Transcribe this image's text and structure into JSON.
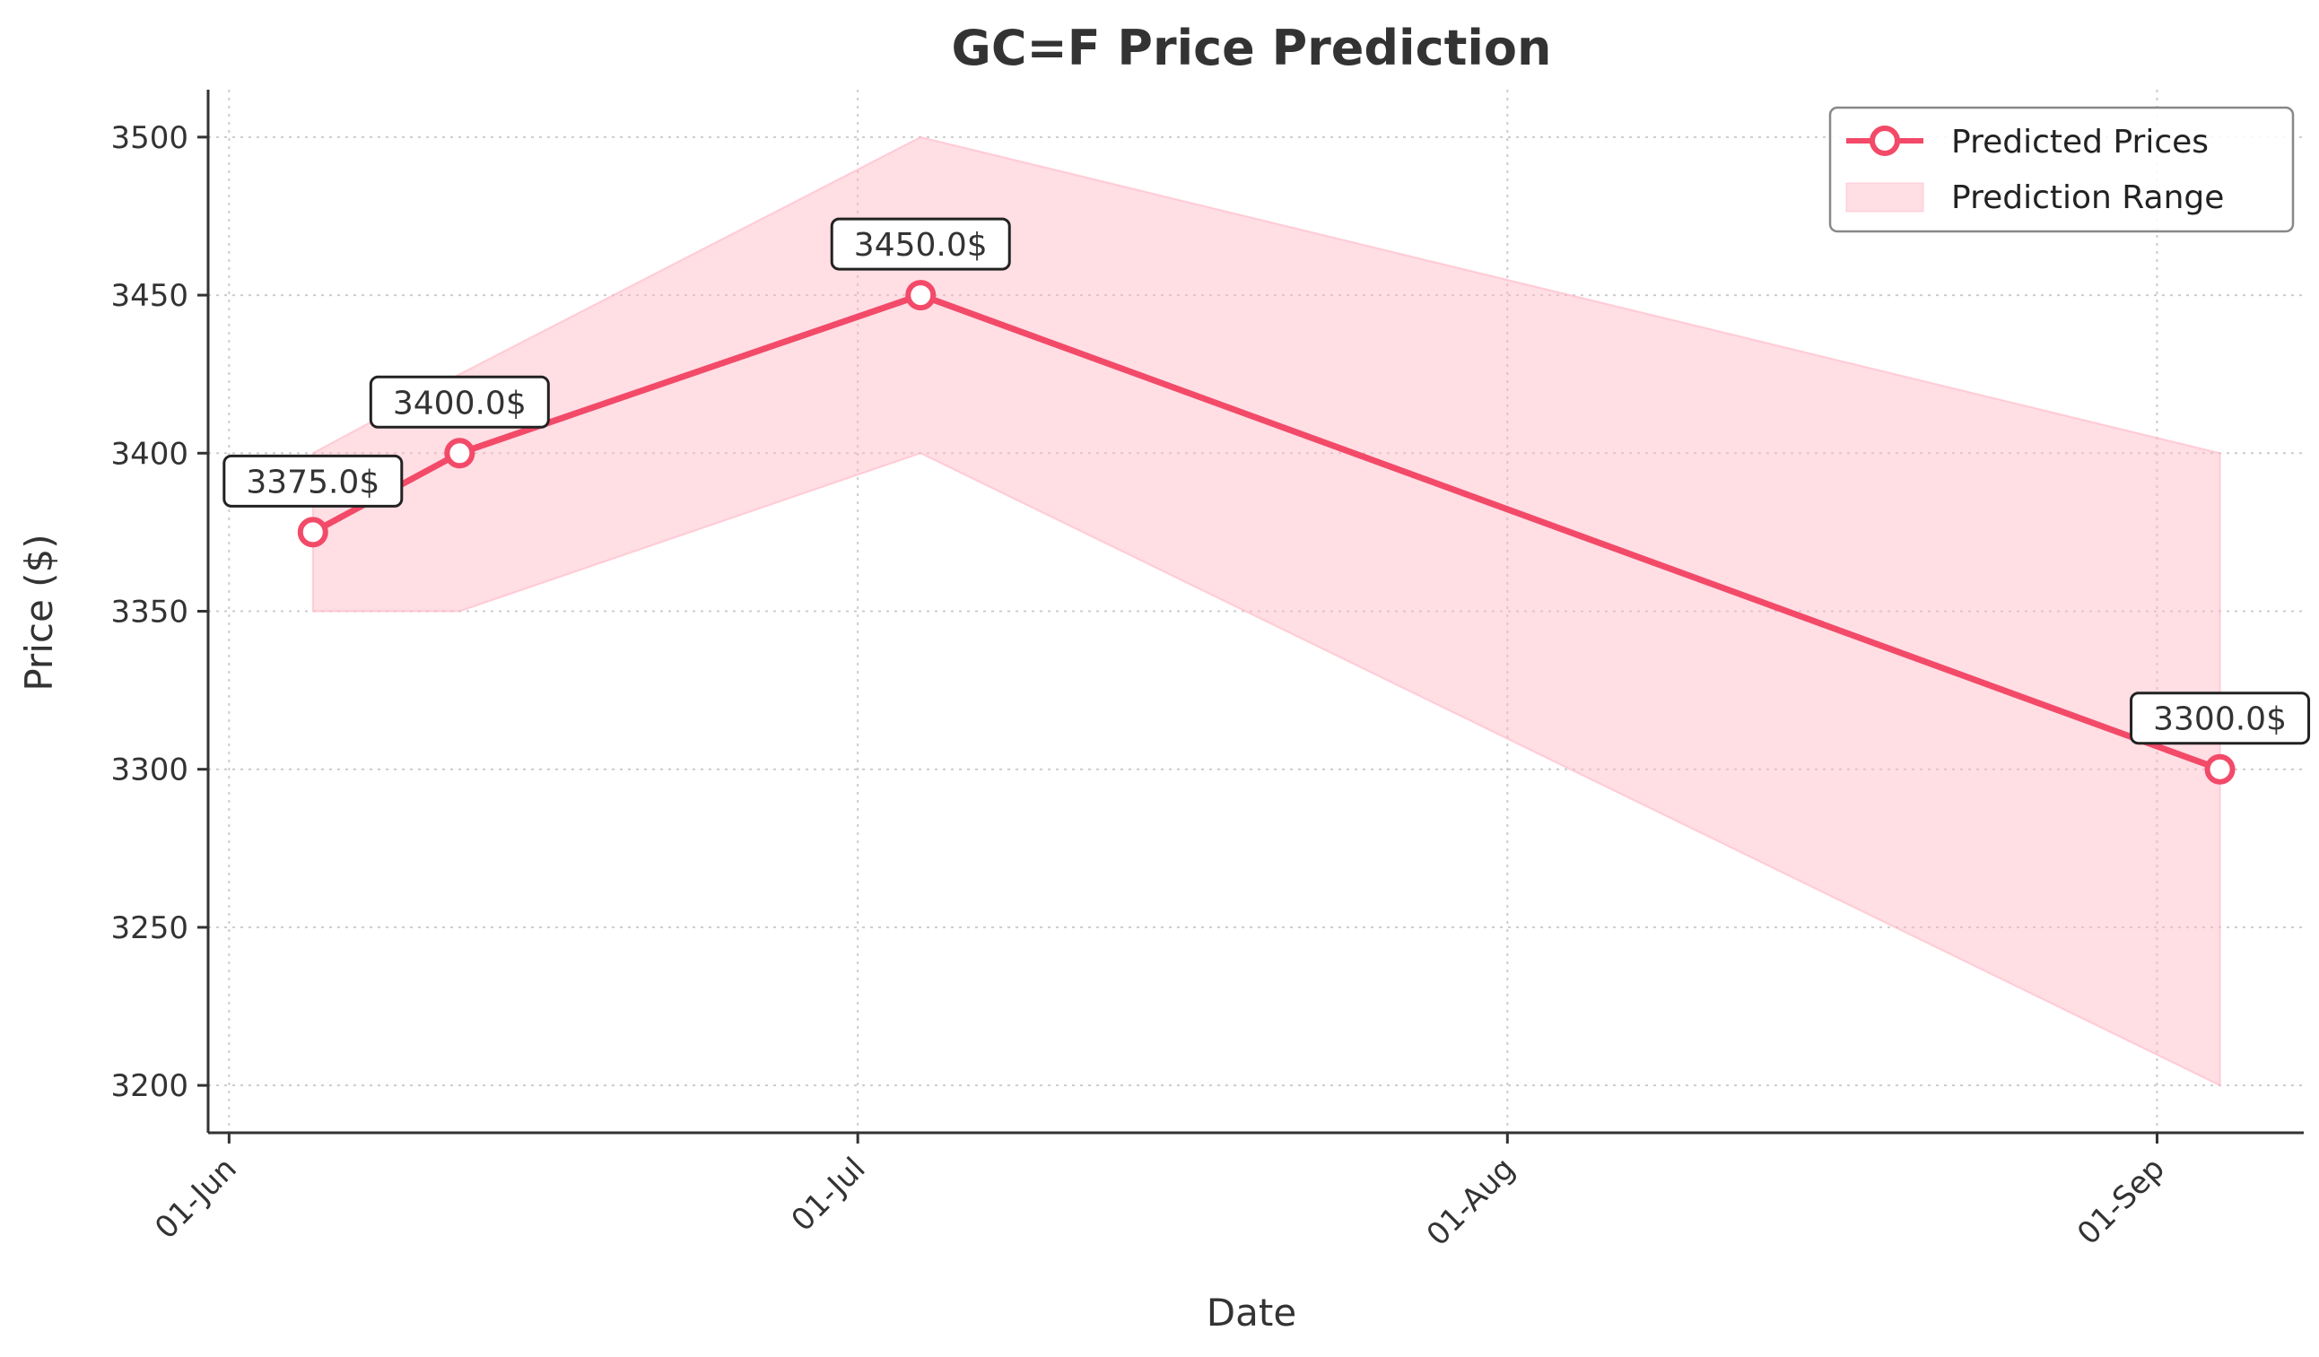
{
  "chart_data": {
    "type": "line",
    "title": "GC=F Price Prediction",
    "xlabel": "Date",
    "ylabel": "Price ($)",
    "x": [
      "2025-06-05",
      "2025-06-12",
      "2025-07-04",
      "2025-09-04"
    ],
    "series": [
      {
        "name": "Predicted Prices",
        "values": [
          3375.0,
          3400.0,
          3450.0,
          3300.0
        ]
      }
    ],
    "range": {
      "name": "Prediction Range",
      "lower": [
        3350,
        3350,
        3400,
        3200
      ],
      "upper": [
        3400,
        3425,
        3500,
        3400
      ]
    },
    "annotations": [
      "3375.0$",
      "3400.0$",
      "3450.0$",
      "3300.0$"
    ],
    "xticks": [
      {
        "date": "2025-06-01",
        "label": "01-Jun"
      },
      {
        "date": "2025-07-01",
        "label": "01-Jul"
      },
      {
        "date": "2025-08-01",
        "label": "01-Aug"
      },
      {
        "date": "2025-09-01",
        "label": "01-Sep"
      }
    ],
    "yticks": [
      3200,
      3250,
      3300,
      3350,
      3400,
      3450,
      3500
    ],
    "ylim": [
      3185,
      3515
    ],
    "xlim": [
      "2025-05-31",
      "2025-09-08"
    ],
    "grid": true,
    "legend_position": "top-right",
    "colors": {
      "line": "#f24a68",
      "fill": "#ffb6c4",
      "marker_fill": "#ffffff"
    }
  }
}
